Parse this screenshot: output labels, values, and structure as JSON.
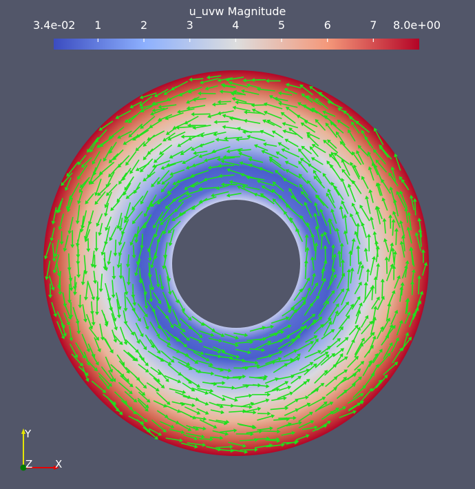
{
  "scene": {
    "background": "#525669",
    "glyph_color": "#1ee01e"
  },
  "colorbar": {
    "title": "u_uvw Magnitude",
    "ticks": [
      {
        "label": "3.4e-02",
        "value": 0.034
      },
      {
        "label": "1",
        "value": 1
      },
      {
        "label": "2",
        "value": 2
      },
      {
        "label": "3",
        "value": 3
      },
      {
        "label": "4",
        "value": 4
      },
      {
        "label": "5",
        "value": 5
      },
      {
        "label": "6",
        "value": 6
      },
      {
        "label": "7",
        "value": 7
      },
      {
        "label": "8.0e+00",
        "value": 8.0
      }
    ],
    "range": [
      0.034,
      8.0
    ],
    "colors": [
      "#3b4cc0",
      "#dddddd",
      "#b40426"
    ]
  },
  "axes": {
    "y_label": "Y",
    "z_label": "Z",
    "x_label": "X",
    "y_color": "#e6e600",
    "x_color": "#e60000",
    "z_color": "#00c800"
  }
}
